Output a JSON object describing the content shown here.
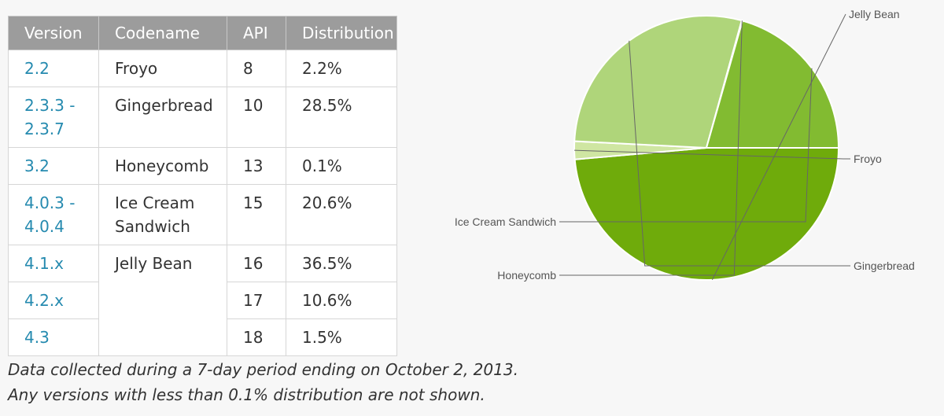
{
  "table": {
    "headers": [
      "Version",
      "Codename",
      "API",
      "Distribution"
    ],
    "rows": [
      {
        "version": "2.2",
        "codename": "Froyo",
        "api": "8",
        "distribution": "2.2%"
      },
      {
        "version": "2.3.3 - 2.3.7",
        "codename": "Gingerbread",
        "api": "10",
        "distribution": "28.5%"
      },
      {
        "version": "3.2",
        "codename": "Honeycomb",
        "api": "13",
        "distribution": "0.1%"
      },
      {
        "version": "4.0.3 - 4.0.4",
        "codename": "Ice Cream Sandwich",
        "api": "15",
        "distribution": "20.6%"
      },
      {
        "version": "4.1.x",
        "codename": "Jelly Bean",
        "api": "16",
        "distribution": "36.5%"
      },
      {
        "version": "4.2.x",
        "codename": "",
        "api": "17",
        "distribution": "10.6%"
      },
      {
        "version": "4.3",
        "codename": "",
        "api": "18",
        "distribution": "1.5%"
      }
    ]
  },
  "footnote": {
    "line1": "Data collected during a 7-day period ending on October 2, 2013.",
    "line2": "Any versions with less than 0.1% distribution are not shown."
  },
  "chart_data": {
    "type": "pie",
    "slices": [
      {
        "label": "Jelly Bean",
        "value": 48.6,
        "color": "#6fab0b"
      },
      {
        "label": "Froyo",
        "value": 2.2,
        "color": "#cfe6a2"
      },
      {
        "label": "Gingerbread",
        "value": 28.5,
        "color": "#afd57a"
      },
      {
        "label": "Honeycomb",
        "value": 0.1,
        "color": "#8cc249"
      },
      {
        "label": "Ice Cream Sandwich",
        "value": 20.6,
        "color": "#82bb31"
      }
    ],
    "legend": "none"
  }
}
